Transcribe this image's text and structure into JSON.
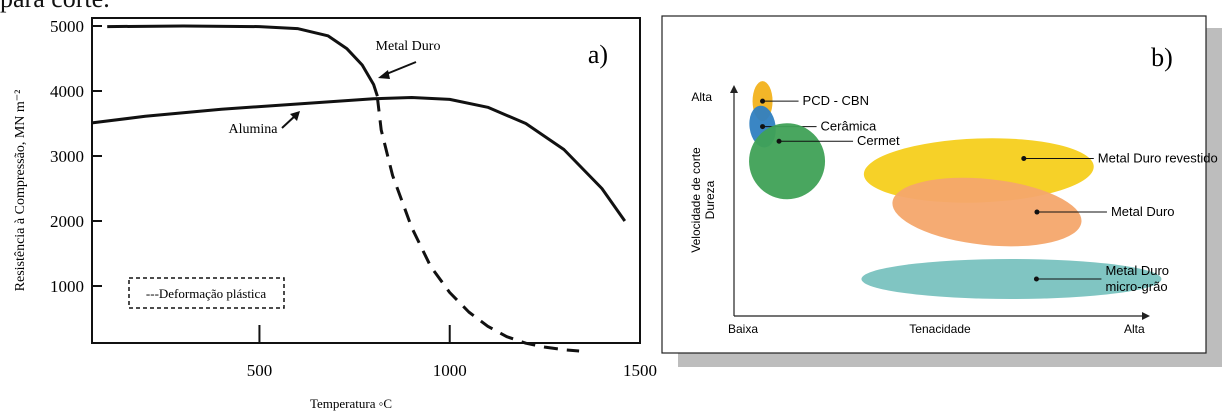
{
  "page": {
    "caption_fragment": "para corte."
  },
  "chart_data": [
    {
      "type": "line",
      "panel_label": "a)",
      "xlabel": "Temperatura ◦C",
      "ylabel": "Resistência à Compressão, MN m⁻²",
      "xlim": [
        60,
        1500
      ],
      "ylim": [
        0,
        5000
      ],
      "xticks": [
        500,
        1000,
        1500
      ],
      "yticks": [
        1000,
        2000,
        3000,
        4000,
        5000
      ],
      "grid": false,
      "series": [
        {
          "name": "Metal Duro",
          "style": "solid",
          "x": [
            100,
            300,
            500,
            600,
            680,
            730,
            770,
            800,
            810
          ],
          "y": [
            4990,
            5000,
            4990,
            4960,
            4850,
            4650,
            4400,
            4100,
            3920
          ]
        },
        {
          "name": "Alumina",
          "style": "solid",
          "x": [
            60,
            200,
            400,
            600,
            800,
            900,
            1000,
            1100,
            1200,
            1300,
            1400,
            1460
          ],
          "y": [
            3510,
            3610,
            3720,
            3800,
            3880,
            3900,
            3870,
            3750,
            3500,
            3100,
            2500,
            2000
          ]
        },
        {
          "name": "---Deformação plástica",
          "style": "dashed",
          "x": [
            810,
            820,
            850,
            900,
            950,
            1000,
            1050,
            1100,
            1150,
            1200,
            1250,
            1300,
            1340
          ],
          "y": [
            3900,
            3400,
            2700,
            1900,
            1300,
            900,
            600,
            380,
            220,
            120,
            60,
            20,
            0
          ]
        }
      ],
      "annotations": [
        "Metal Duro",
        "Alumina"
      ],
      "legend": "---Deformação plástica"
    },
    {
      "type": "scatter",
      "panel_label": "b)",
      "xlabel": "Tenacidade",
      "ylabel_lines": [
        "Velocidade de corte",
        "Dureza"
      ],
      "xticks": [
        "Baixa",
        "Alta"
      ],
      "yticks": [
        "Alta"
      ],
      "series": [
        {
          "name": "PCD - CBN",
          "color": "#f2b21c",
          "x": 0.07,
          "y": 0.93
        },
        {
          "name": "Cerâmica",
          "color": "#2f7fc1",
          "x": 0.07,
          "y": 0.82
        },
        {
          "name": "Cermet",
          "color": "#3fa156",
          "x": 0.13,
          "y": 0.67
        },
        {
          "name": "Metal Duro revestido",
          "color": "#f6cf1c",
          "x": 0.6,
          "y": 0.63
        },
        {
          "name": "Metal Duro",
          "color": "#f4a66c",
          "x": 0.62,
          "y": 0.45
        },
        {
          "name": "Metal Duro\nmicro-grão",
          "color": "#79c2bf",
          "x": 0.68,
          "y": 0.16
        }
      ]
    }
  ]
}
